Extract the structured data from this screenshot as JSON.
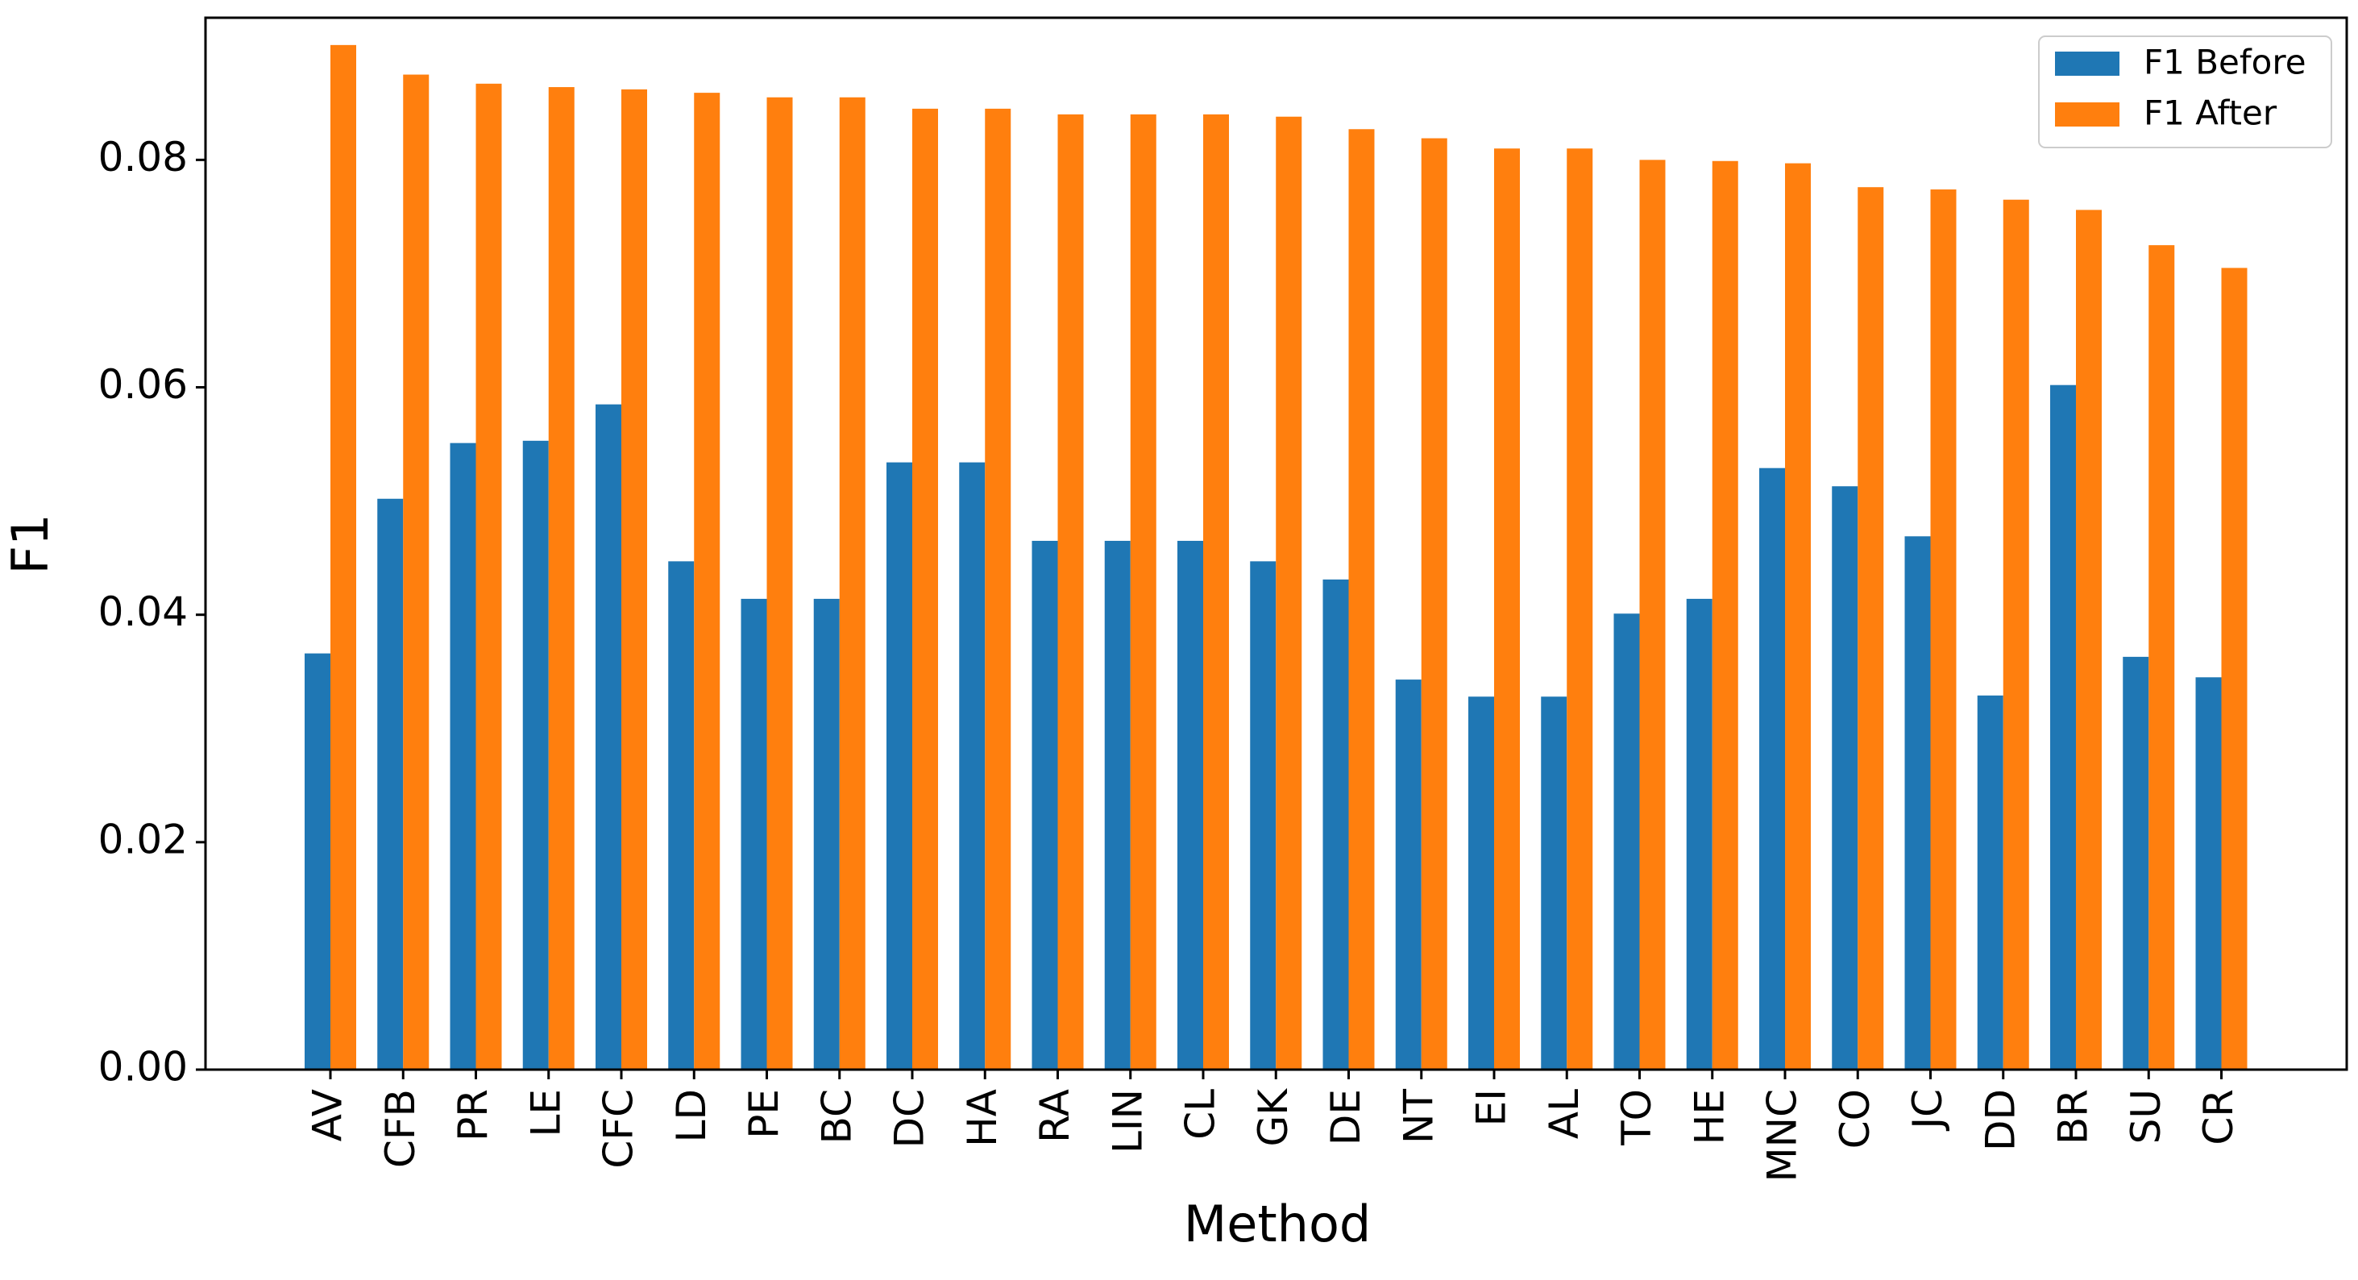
{
  "chart_data": {
    "type": "bar",
    "title": "",
    "xlabel": "Method",
    "ylabel": "F1",
    "ylim": [
      0,
      0.0925
    ],
    "yticks": [
      0.0,
      0.02,
      0.04,
      0.06,
      0.08
    ],
    "ytick_labels": [
      "0.00",
      "0.02",
      "0.04",
      "0.06",
      "0.08"
    ],
    "grid": false,
    "legend_position": "top-right",
    "categories": [
      "AV",
      "CFB",
      "PR",
      "LE",
      "CFC",
      "LD",
      "PE",
      "BC",
      "DC",
      "HA",
      "RA",
      "LIN",
      "CL",
      "GK",
      "DE",
      "NT",
      "EI",
      "AL",
      "TO",
      "HE",
      "MNC",
      "CO",
      "JC",
      "DD",
      "BR",
      "SU",
      "CR"
    ],
    "series": [
      {
        "name": "F1 Before",
        "color": "#1f77b4",
        "values": [
          0.0366,
          0.0502,
          0.0551,
          0.0553,
          0.0585,
          0.0447,
          0.0414,
          0.0414,
          0.0534,
          0.0534,
          0.0465,
          0.0465,
          0.0465,
          0.0447,
          0.0431,
          0.0343,
          0.0328,
          0.0328,
          0.0401,
          0.0414,
          0.0529,
          0.0513,
          0.0469,
          0.0329,
          0.0602,
          0.0363,
          0.0345
        ]
      },
      {
        "name": "F1 After",
        "color": "#ff7f0e",
        "values": [
          0.0901,
          0.0875,
          0.0867,
          0.0864,
          0.0862,
          0.0859,
          0.0855,
          0.0855,
          0.0845,
          0.0845,
          0.084,
          0.084,
          0.084,
          0.0838,
          0.0827,
          0.0819,
          0.081,
          0.081,
          0.08,
          0.0799,
          0.0797,
          0.0776,
          0.0774,
          0.0765,
          0.0756,
          0.0725,
          0.0705
        ]
      }
    ]
  }
}
